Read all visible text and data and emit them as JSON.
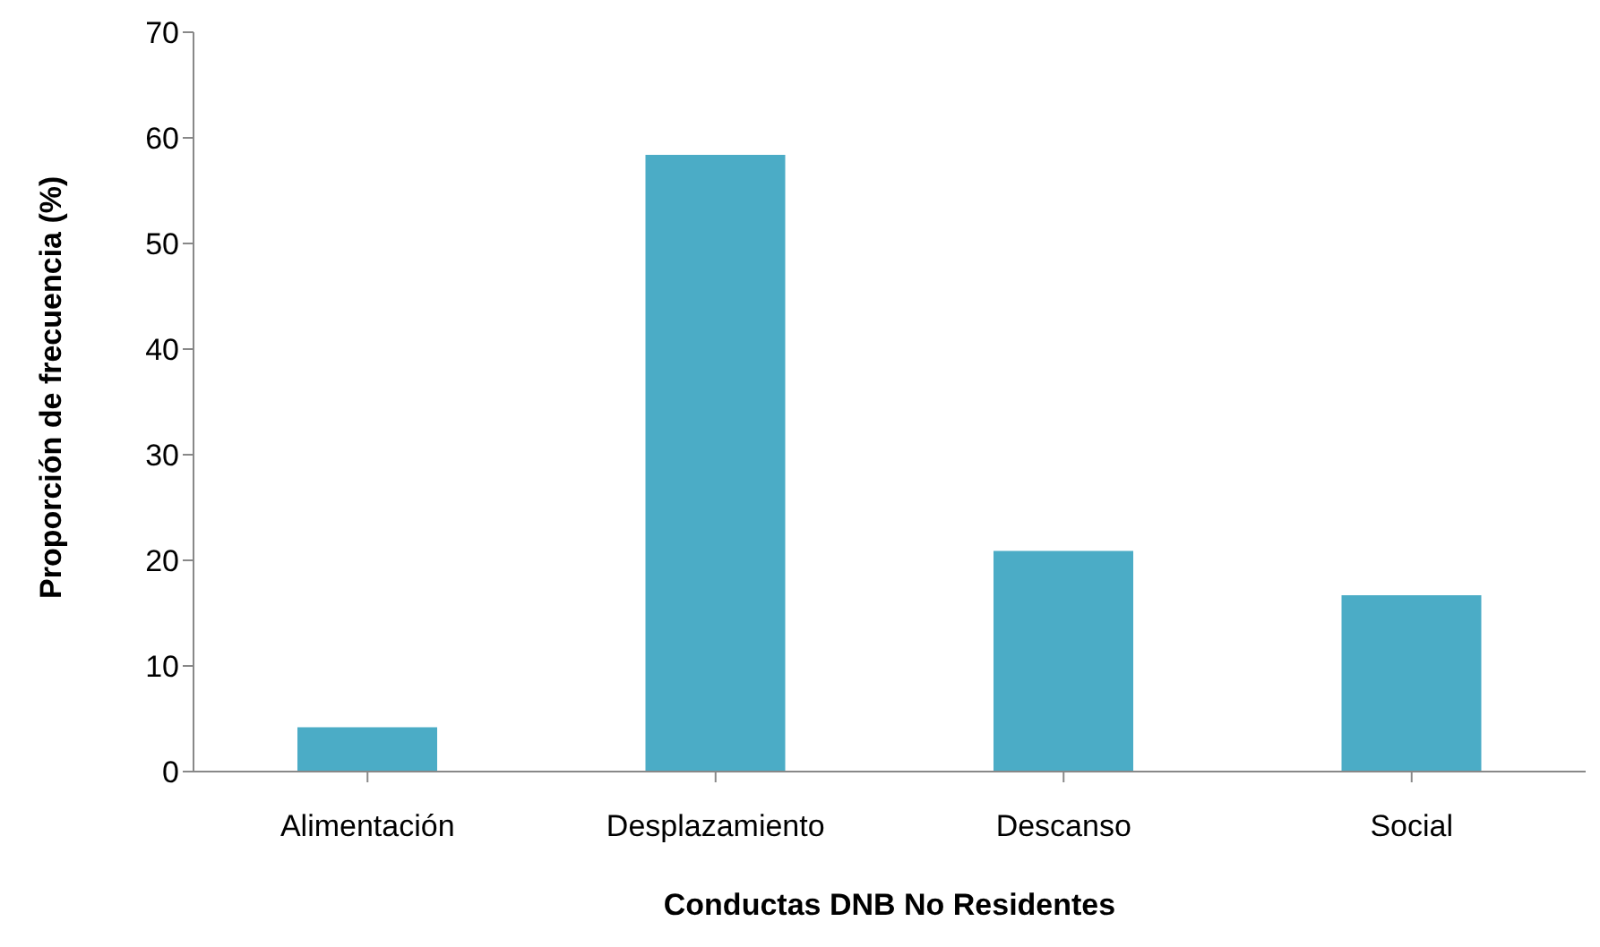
{
  "chart_data": {
    "type": "bar",
    "xlabel": "Conductas DNB No Residentes",
    "ylabel": "Proporción de frecuencia (%)",
    "categories": [
      "Alimentación",
      "Desplazamiento",
      "Descanso",
      "Social"
    ],
    "values": [
      4.2,
      58.4,
      20.9,
      16.7
    ],
    "color": "#4bacc6",
    "ylim": [
      0,
      70
    ],
    "yticks": [
      0,
      10,
      20,
      30,
      40,
      50,
      60,
      70
    ],
    "grid": false,
    "legend": false
  }
}
